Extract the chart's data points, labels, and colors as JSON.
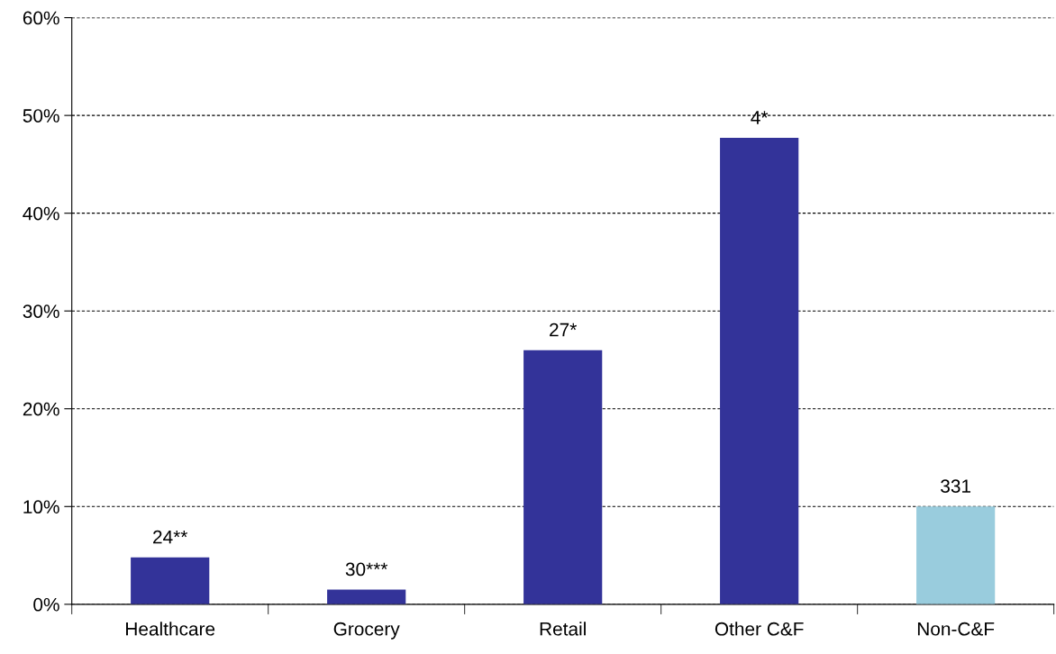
{
  "chart_data": {
    "type": "bar",
    "categories": [
      "Healthcare",
      "Grocery",
      "Retail",
      "Other C&F",
      "Non-C&F"
    ],
    "values": [
      4.8,
      1.5,
      26.0,
      47.7,
      10.0
    ],
    "colors": [
      "#333399",
      "#333399",
      "#333399",
      "#333399",
      "#99ccdd"
    ],
    "annotations": [
      {
        "text": "24**",
        "x": "Healthcare",
        "y": 4.8
      },
      {
        "text": "30***",
        "x": "Grocery",
        "y": 1.5
      },
      {
        "text": "27*",
        "x": "Retail",
        "y": 26.0
      },
      {
        "text": "4*",
        "x": "Other C&F",
        "y": 47.7
      },
      {
        "text": "331",
        "x": "Non-C&F",
        "y": 10.0
      }
    ],
    "ylim": [
      0,
      60
    ],
    "yticks": [
      {
        "value": 0,
        "label": "0%"
      },
      {
        "value": 10,
        "label": "10%"
      },
      {
        "value": 20,
        "label": "20%"
      },
      {
        "value": 30,
        "label": "30%"
      },
      {
        "value": 40,
        "label": "40%"
      },
      {
        "value": 50,
        "label": "50%"
      },
      {
        "value": 60,
        "label": "60%"
      }
    ],
    "grid": "y",
    "legend": false
  }
}
